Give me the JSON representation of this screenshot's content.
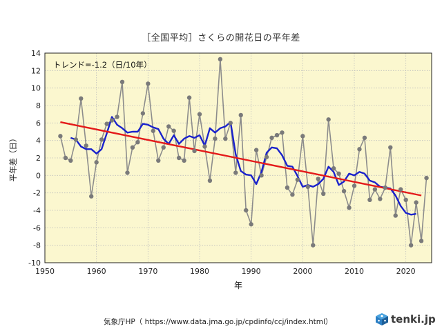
{
  "chart_data": {
    "type": "line",
    "title": "［全国平均］さくらの開花日の平年差",
    "xlabel": "年",
    "ylabel": "平年差（日）",
    "xlim": [
      1950,
      2025
    ],
    "ylim": [
      -10,
      14
    ],
    "xticks": [
      1950,
      1960,
      1970,
      1980,
      1990,
      2000,
      2010,
      2020
    ],
    "yticks": [
      -10,
      -8,
      -6,
      -4,
      -2,
      0,
      2,
      4,
      6,
      8,
      10,
      12,
      14
    ],
    "grid": true,
    "annotation": "トレンド=-1.2（日/10年）",
    "colors": {
      "annual": "#8c8c8c",
      "marker": "#7a7a7a",
      "moving_avg": "#1a22cc",
      "trend": "#e41a1a",
      "plot_bg": "#fbf7cf"
    },
    "series": [
      {
        "name": "annual",
        "x": [
          1953,
          1954,
          1955,
          1956,
          1957,
          1958,
          1959,
          1960,
          1961,
          1962,
          1963,
          1964,
          1965,
          1966,
          1967,
          1968,
          1969,
          1970,
          1971,
          1972,
          1973,
          1974,
          1975,
          1976,
          1977,
          1978,
          1979,
          1980,
          1981,
          1982,
          1983,
          1984,
          1985,
          1986,
          1987,
          1988,
          1989,
          1990,
          1991,
          1992,
          1993,
          1994,
          1995,
          1996,
          1997,
          1998,
          1999,
          2000,
          2001,
          2002,
          2003,
          2004,
          2005,
          2006,
          2007,
          2008,
          2009,
          2010,
          2011,
          2012,
          2013,
          2014,
          2015,
          2016,
          2017,
          2018,
          2019,
          2020,
          2021,
          2022,
          2023,
          2024
        ],
        "values": [
          4.5,
          2.0,
          1.7,
          4.1,
          8.8,
          3.4,
          -2.4,
          1.5,
          4.1,
          5.9,
          6.3,
          6.7,
          10.7,
          0.3,
          3.2,
          3.8,
          7.1,
          10.5,
          5.1,
          1.7,
          3.2,
          5.6,
          5.1,
          2.0,
          1.7,
          8.9,
          2.8,
          7.0,
          3.3,
          -0.6,
          4.2,
          13.3,
          4.2,
          6.0,
          0.3,
          6.9,
          -4.0,
          -5.6,
          2.9,
          0.0,
          2.1,
          4.3,
          4.6,
          4.9,
          -1.4,
          -2.2,
          -0.5,
          4.5,
          -1.3,
          -8.0,
          -0.4,
          -2.1,
          6.4,
          0.8,
          0.2,
          -1.8,
          -3.7,
          -1.2,
          3.0,
          4.3,
          -2.8,
          -1.6,
          -2.7,
          -1.4,
          3.2,
          -4.6,
          -1.6,
          -2.8,
          -8.0,
          -3.1,
          -7.5,
          -0.3
        ]
      },
      {
        "name": "moving-average",
        "x": [
          1955,
          1956,
          1957,
          1958,
          1959,
          1960,
          1961,
          1962,
          1963,
          1964,
          1965,
          1966,
          1967,
          1968,
          1969,
          1970,
          1971,
          1972,
          1973,
          1974,
          1975,
          1976,
          1977,
          1978,
          1979,
          1980,
          1981,
          1982,
          1983,
          1984,
          1985,
          1986,
          1987,
          1988,
          1989,
          1990,
          1991,
          1992,
          1993,
          1994,
          1995,
          1996,
          1997,
          1998,
          1999,
          2000,
          2001,
          2002,
          2003,
          2004,
          2005,
          2006,
          2007,
          2008,
          2009,
          2010,
          2011,
          2012,
          2013,
          2014,
          2015,
          2016,
          2017,
          2018,
          2019,
          2020,
          2021,
          2022
        ],
        "values": [
          4.3,
          4.1,
          3.3,
          3.0,
          3.0,
          2.5,
          3.0,
          4.8,
          6.7,
          5.8,
          5.4,
          4.9,
          5.0,
          5.0,
          5.9,
          5.8,
          5.5,
          5.3,
          4.2,
          3.6,
          4.6,
          3.6,
          4.2,
          4.5,
          4.3,
          4.6,
          3.4,
          5.4,
          4.9,
          5.4,
          5.6,
          6.1,
          2.4,
          0.5,
          0.1,
          0.0,
          -1.0,
          0.4,
          2.6,
          3.2,
          3.1,
          2.3,
          1.1,
          1.0,
          -0.1,
          -1.3,
          -1.1,
          -1.3,
          -1.0,
          -0.4,
          1.0,
          0.4,
          -1.1,
          -0.7,
          0.2,
          0.0,
          0.4,
          0.2,
          -0.6,
          -0.8,
          -1.3,
          -1.4,
          -1.5,
          -2.3,
          -3.5,
          -4.3,
          -4.5,
          -4.4
        ]
      },
      {
        "name": "trend",
        "x": [
          1953,
          2023
        ],
        "values": [
          6.1,
          -2.3
        ]
      }
    ]
  },
  "source": "気象庁HP（ https://www.data.jma.go.jp/cpdinfo/ccj/index.html）",
  "brand": "tenki.jp"
}
